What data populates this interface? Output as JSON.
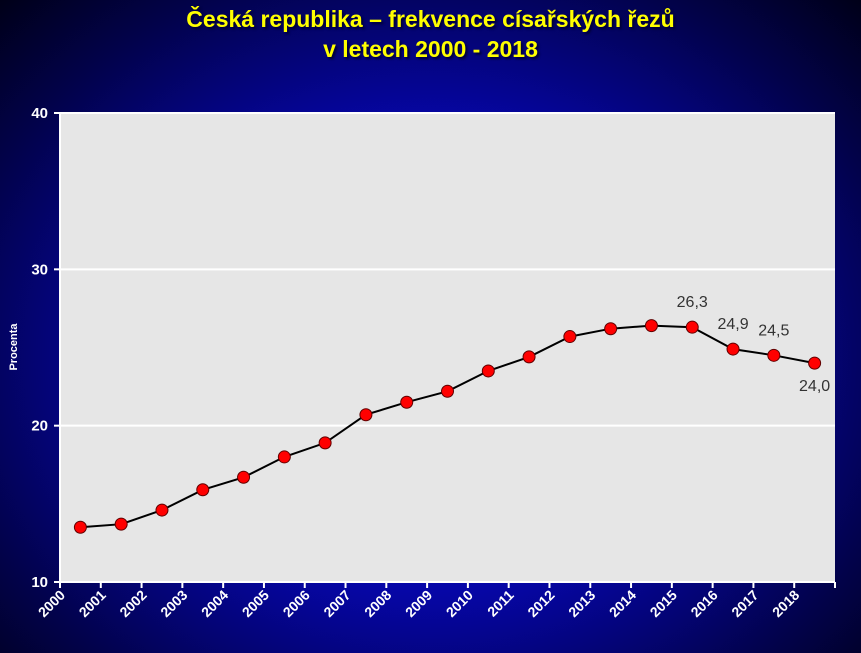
{
  "chart_data": {
    "type": "line",
    "title_line1": "Česká republika – frekvence císařských řezů",
    "title_line2": "v letech 2000 - 2018",
    "ylabel": "Procenta",
    "xlabel": "",
    "ylim": [
      10,
      40
    ],
    "yticks": [
      10,
      20,
      30,
      40
    ],
    "grid": true,
    "categories": [
      "2000",
      "2001",
      "2002",
      "2003",
      "2004",
      "2005",
      "2006",
      "2007",
      "2008",
      "2009",
      "2010",
      "2011",
      "2012",
      "2013",
      "2014",
      "2015",
      "2016",
      "2017",
      "2018"
    ],
    "series": [
      {
        "values": [
          13.5,
          13.7,
          14.6,
          15.9,
          16.7,
          18.0,
          18.9,
          20.7,
          21.5,
          22.2,
          23.5,
          24.4,
          25.7,
          26.2,
          26.4,
          26.3,
          24.9,
          24.5,
          24.0
        ]
      }
    ],
    "data_labels": [
      {
        "index": 15,
        "text": "26,3",
        "pos": "above"
      },
      {
        "index": 16,
        "text": "24,9",
        "pos": "above"
      },
      {
        "index": 17,
        "text": "24,5",
        "pos": "above"
      },
      {
        "index": 18,
        "text": "24,0",
        "pos": "below"
      }
    ],
    "colors": {
      "line": "#000000",
      "marker": "#ff0000",
      "plot_bg": "#e6e6e6",
      "title": "#ffff00",
      "axis_text": "#ffffff",
      "label_text": "#333333"
    }
  }
}
